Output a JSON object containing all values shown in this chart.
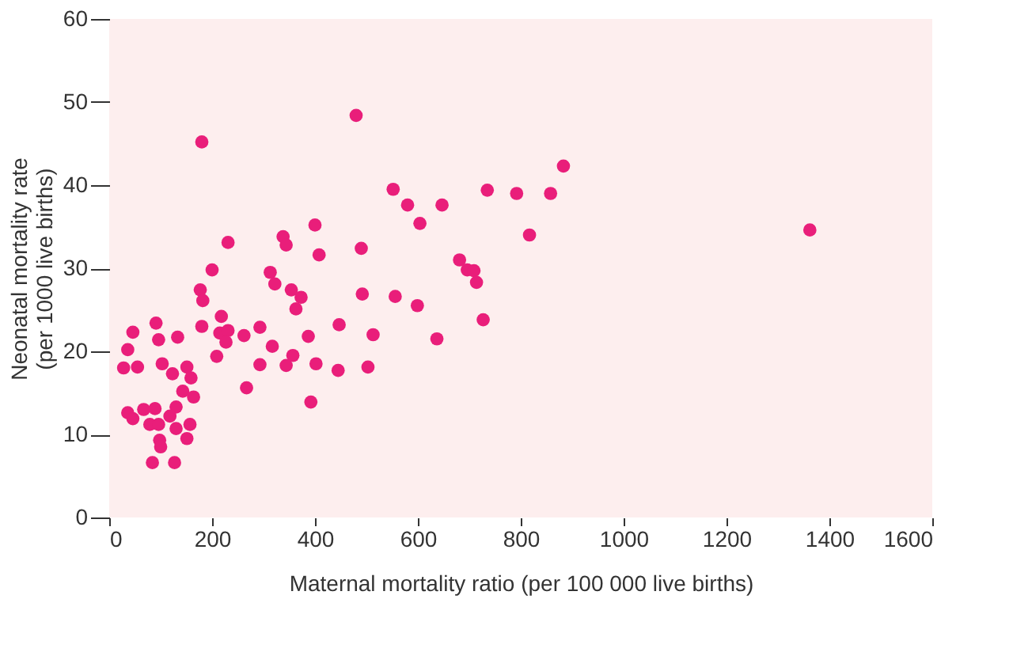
{
  "chart_data": {
    "type": "scatter",
    "xlabel": "Maternal mortality ratio (per 100 000 live births)",
    "ylabel": "Neonatal mortality rate\n(per 1000 live births)",
    "xlim": [
      0,
      1600
    ],
    "xticks": [
      0,
      200,
      400,
      600,
      800,
      1000,
      1200,
      1400,
      1600
    ],
    "ylim": [
      0,
      60
    ],
    "yticks": [
      0,
      10,
      20,
      30,
      40,
      50,
      60
    ],
    "grid": false,
    "marker": "circle",
    "series": [
      {
        "color": "#e91e7a",
        "x": [
          480,
          180,
          552,
          580,
          400,
          338,
          344,
          231,
          490,
          408,
          200,
          313,
          322,
          177,
          354,
          373,
          182,
          492,
          556,
          363,
          91,
          180,
          218,
          293,
          447,
          46,
          96,
          133,
          215,
          231,
          227,
          262,
          387,
          513,
          36,
          317,
          357,
          209,
          28,
          55,
          103,
          151,
          123,
          159,
          293,
          344,
          402,
          445,
          503,
          267,
          143,
          164,
          392,
          36,
          46,
          67,
          89,
          130,
          118,
          79,
          96,
          130,
          157,
          151,
          98,
          100,
          84,
          127,
          883,
          647,
          735,
          792,
          858,
          604,
          817,
          681,
          696,
          709,
          714,
          599,
          727,
          637,
          1362
        ],
        "values": [
          48.4,
          45.2,
          39.5,
          37.6,
          35.2,
          33.8,
          32.8,
          33.1,
          32.4,
          31.6,
          29.8,
          29.5,
          28.1,
          27.4,
          27.4,
          26.5,
          26.1,
          26.9,
          26.6,
          25.1,
          23.4,
          23.0,
          24.2,
          22.9,
          23.2,
          22.3,
          21.4,
          21.7,
          22.2,
          22.5,
          21.1,
          21.9,
          21.8,
          22.0,
          20.2,
          20.6,
          19.5,
          19.4,
          18.0,
          18.1,
          18.5,
          18.1,
          17.3,
          16.8,
          18.4,
          18.3,
          18.5,
          17.7,
          18.1,
          15.6,
          15.2,
          14.5,
          13.9,
          12.6,
          11.9,
          13.0,
          13.1,
          13.3,
          12.2,
          11.2,
          11.2,
          10.7,
          11.2,
          9.5,
          9.3,
          8.5,
          6.6,
          6.6,
          42.3,
          37.6,
          39.4,
          39.0,
          39.0,
          35.4,
          34.0,
          31.0,
          29.8,
          29.7,
          28.3,
          25.5,
          23.8,
          21.5,
          34.6
        ]
      }
    ]
  }
}
